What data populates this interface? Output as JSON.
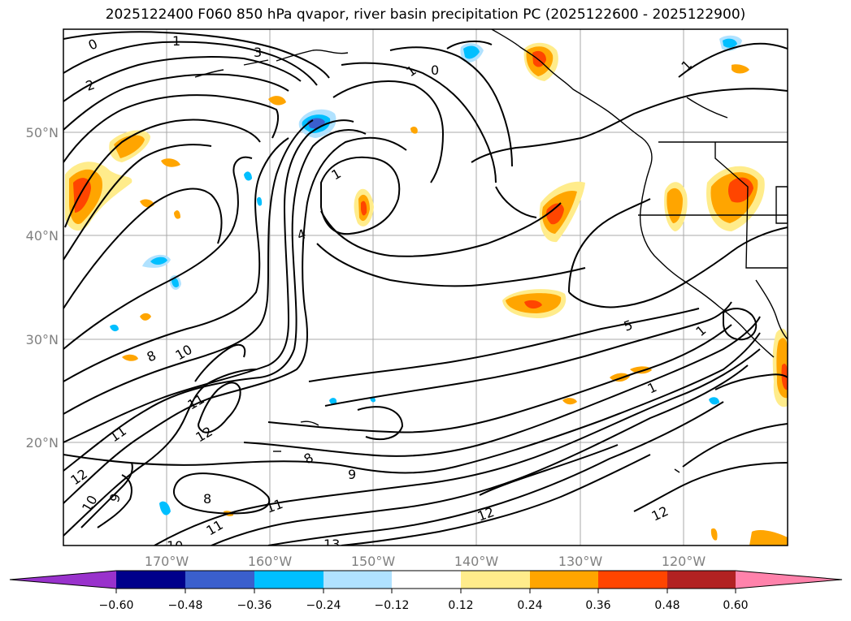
{
  "title": "2025122400 F060 850 hPa qvapor, river basin precipitation PC (2025122600 - 2025122900)",
  "map": {
    "lat_labels": [
      "50°N",
      "40°N",
      "30°N",
      "20°N"
    ],
    "lon_labels": [
      "170°W",
      "160°W",
      "150°W",
      "140°W",
      "130°W",
      "120°W"
    ]
  },
  "contour_labels": [
    "0",
    "1",
    "3",
    "2",
    "1",
    "0",
    "1",
    "1",
    "5",
    "8",
    "10",
    "11",
    "12",
    "11",
    "12",
    "10",
    "9",
    "8",
    "8",
    "9",
    "11",
    "11",
    "10",
    "13",
    "12",
    "12",
    "1",
    "4",
    "1"
  ],
  "colorbar": {
    "colors": [
      "#9932cc",
      "#00008b",
      "#3a5fcd",
      "#00bfff",
      "#b0e2ff",
      "#ffffff",
      "#ffec8b",
      "#ffa500",
      "#ff4500",
      "#b22222",
      "#ff82ab"
    ],
    "tick_labels": [
      "−0.60",
      "−0.48",
      "−0.36",
      "−0.24",
      "−0.12",
      "0.12",
      "0.24",
      "0.36",
      "0.48",
      "0.60"
    ]
  }
}
